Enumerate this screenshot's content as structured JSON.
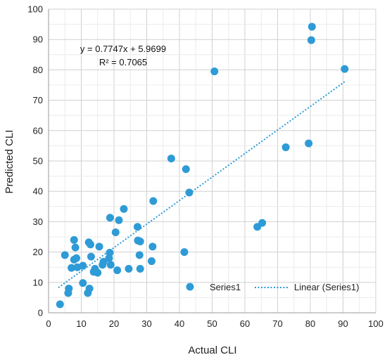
{
  "chart_data": {
    "type": "scatter",
    "xlabel": "Actual CLI",
    "ylabel": "Predicted CLI",
    "xlim": [
      0,
      100
    ],
    "ylim": [
      0,
      100
    ],
    "xticks": [
      0,
      10,
      20,
      30,
      40,
      50,
      60,
      70,
      80,
      90,
      100
    ],
    "yticks": [
      0,
      10,
      20,
      30,
      40,
      50,
      60,
      70,
      80,
      90,
      100
    ],
    "grid": true,
    "legend_position": "bottom-right",
    "point_color": "#2e9bd6",
    "trend_color": "#2e9bd6",
    "series": [
      {
        "name": "Series1",
        "points": [
          [
            3.5,
            2.8
          ],
          [
            5,
            19
          ],
          [
            6,
            6.5
          ],
          [
            6.2,
            8
          ],
          [
            7,
            14.8
          ],
          [
            7.8,
            17.5
          ],
          [
            7.8,
            24
          ],
          [
            8.2,
            21.5
          ],
          [
            8.5,
            18
          ],
          [
            8.8,
            15
          ],
          [
            10.5,
            9.8
          ],
          [
            10.5,
            15.5
          ],
          [
            12,
            6.5
          ],
          [
            12.5,
            8
          ],
          [
            12.3,
            23.2
          ],
          [
            12.8,
            22.5
          ],
          [
            13,
            18.5
          ],
          [
            13.8,
            13.5
          ],
          [
            14.2,
            14.5
          ],
          [
            15,
            13.2
          ],
          [
            15.5,
            21.8
          ],
          [
            16.5,
            15.8
          ],
          [
            16.8,
            16.8
          ],
          [
            18.5,
            18
          ],
          [
            18.7,
            19.8
          ],
          [
            18.8,
            31.3
          ],
          [
            19,
            15.8
          ],
          [
            20.5,
            26.5
          ],
          [
            21,
            14
          ],
          [
            21.5,
            30.5
          ],
          [
            23,
            34.2
          ],
          [
            24.5,
            14.5
          ],
          [
            27.2,
            28.3
          ],
          [
            27.3,
            23.8
          ],
          [
            27.8,
            19
          ],
          [
            28,
            14.5
          ],
          [
            28,
            23.5
          ],
          [
            31.5,
            17
          ],
          [
            31.8,
            21.8
          ],
          [
            32,
            36.8
          ],
          [
            37.5,
            50.8
          ],
          [
            41.5,
            20
          ],
          [
            42,
            47.3
          ],
          [
            43,
            39.6
          ],
          [
            50.7,
            79.5
          ],
          [
            63.8,
            28.3
          ],
          [
            65.3,
            29.6
          ],
          [
            72.5,
            54.5
          ],
          [
            79.5,
            55.8
          ],
          [
            80.3,
            89.8
          ],
          [
            80.5,
            94.2
          ],
          [
            90.5,
            80.3
          ]
        ]
      }
    ],
    "trendline": {
      "name": "Linear (Series1)",
      "slope": 0.7747,
      "intercept": 5.9699,
      "x_range": [
        3,
        90.5
      ],
      "equation": "y = 0.7747x + 5.9699",
      "r_squared": "R² = 0.7065"
    }
  }
}
